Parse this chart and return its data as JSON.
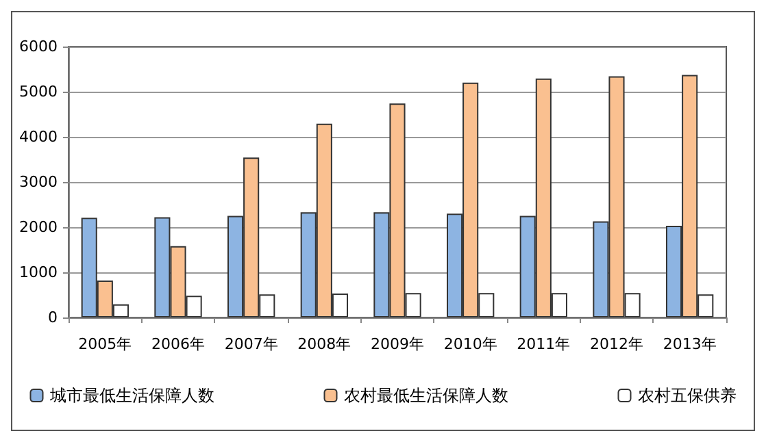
{
  "chart_data": {
    "type": "bar",
    "categories": [
      "2005年",
      "2006年",
      "2007年",
      "2008年",
      "2009年",
      "2010年",
      "2011年",
      "2012年",
      "2013年"
    ],
    "series": [
      {
        "name": "城市最低生活保障人数",
        "color": "#8db4e2",
        "values": [
          2210,
          2220,
          2250,
          2330,
          2330,
          2300,
          2250,
          2130,
          2030
        ]
      },
      {
        "name": "农村最低生活保障人数",
        "color": "#fac090",
        "values": [
          820,
          1580,
          3540,
          4290,
          4740,
          5200,
          5290,
          5340,
          5370
        ]
      },
      {
        "name": "农村五保供养",
        "color": "#ffffff",
        "values": [
          290,
          480,
          510,
          530,
          540,
          540,
          540,
          540,
          510
        ]
      }
    ],
    "ylim": [
      0,
      6000
    ],
    "yticks": [
      0,
      1000,
      2000,
      3000,
      4000,
      5000,
      6000
    ],
    "grid": "y",
    "legend": "bottom"
  }
}
